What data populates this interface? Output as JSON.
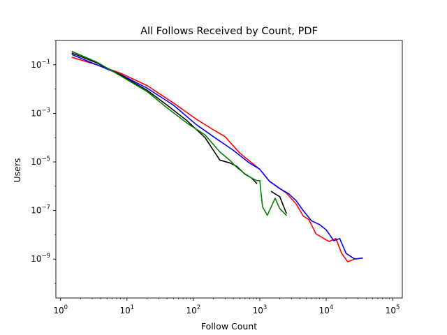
{
  "chart_data": {
    "type": "line",
    "title": "All Follows Received by Count, PDF",
    "xlabel": "Follow Count",
    "ylabel": "Users",
    "xscale": "log",
    "yscale": "log",
    "xlim": [
      0.85,
      140000
    ],
    "ylim": [
      2.5e-11,
      1.0
    ],
    "xticks": [
      {
        "value": 1,
        "base": "10",
        "exp": "0"
      },
      {
        "value": 10,
        "base": "10",
        "exp": "1"
      },
      {
        "value": 100,
        "base": "10",
        "exp": "2"
      },
      {
        "value": 1000,
        "base": "10",
        "exp": "3"
      },
      {
        "value": 10000,
        "base": "10",
        "exp": "4"
      },
      {
        "value": 100000,
        "base": "10",
        "exp": "5"
      }
    ],
    "yticks": [
      {
        "value": 1e-09,
        "base": "10",
        "exp": "−9"
      },
      {
        "value": 1e-07,
        "base": "10",
        "exp": "−7"
      },
      {
        "value": 1e-05,
        "base": "10",
        "exp": "−5"
      },
      {
        "value": 0.001,
        "base": "10",
        "exp": "−3"
      },
      {
        "value": 0.1,
        "base": "10",
        "exp": "−1"
      }
    ],
    "grid": false,
    "legend": "none",
    "series": [
      {
        "color": "#ff0000",
        "segments": [
          {
            "x": [
              1.5,
              3.5,
              8,
              20,
              50,
              110,
              200,
              300,
              500,
              1000,
              1400,
              2000,
              2500,
              3500,
              4500,
              5500,
              7000,
              8500,
              11000,
              14000,
              17000,
              21000,
              27000
            ],
            "y": [
              0.2,
              0.1,
              0.045,
              0.014,
              0.0027,
              0.00058,
              0.00021,
              0.00011,
              2.3e-05,
              5e-06,
              1.6e-06,
              8e-07,
              5.3e-07,
              1.9e-07,
              6e-08,
              4.2e-08,
              1.1e-08,
              8e-09,
              5.3e-09,
              7e-09,
              1.8e-09,
              7.8e-10,
              1e-09
            ]
          }
        ]
      },
      {
        "color": "#0000ff",
        "segments": [
          {
            "x": [
              1.5,
              3.5,
              8,
              20,
              50,
              110,
              200,
              400,
              700,
              1000,
              1400,
              2000,
              2700,
              3500,
              4500,
              6000,
              8000,
              10000,
              13000,
              16000,
              20000,
              27000,
              35000
            ],
            "y": [
              0.26,
              0.1,
              0.04,
              0.011,
              0.0022,
              0.00035,
              0.00011,
              3e-05,
              9e-06,
              5e-06,
              1.6e-06,
              8e-07,
              5e-07,
              2.6e-07,
              1e-07,
              3.8e-08,
              2.6e-08,
              1.6e-08,
              5.7e-09,
              7e-09,
              1.7e-09,
              1e-09,
              1.1e-09
            ]
          }
        ]
      },
      {
        "color": "#000000",
        "segments": [
          {
            "x": [
              1.5,
              3.5,
              8,
              20,
              40,
              80,
              150,
              250,
              350,
              450,
              600,
              750,
              900
            ],
            "y": [
              0.3,
              0.12,
              0.038,
              0.009,
              0.0022,
              0.0005,
              0.0001,
              1.2e-05,
              9.2e-06,
              6.6e-06,
              3.1e-06,
              2.2e-06,
              1.3e-06
            ]
          },
          {
            "x": [
              1500,
              2000,
              2500
            ],
            "y": [
              6e-07,
              3.7e-07,
              8e-08
            ]
          }
        ]
      },
      {
        "color": "#008000",
        "segments": [
          {
            "x": [
              1.5,
              3.5,
              8,
              20,
              40,
              80,
              150,
              250,
              350,
              450,
              600,
              750,
              900,
              1000,
              1100,
              1300,
              1700,
              2000,
              2500
            ],
            "y": [
              0.35,
              0.13,
              0.035,
              0.008,
              0.0017,
              0.0004,
              0.00013,
              2.6e-05,
              1.2e-05,
              6e-06,
              3.2e-06,
              2.2e-06,
              1.7e-06,
              1.7e-06,
              1.4e-07,
              6.4e-08,
              3.2e-07,
              1.2e-07,
              6.4e-08
            ]
          }
        ]
      }
    ]
  }
}
